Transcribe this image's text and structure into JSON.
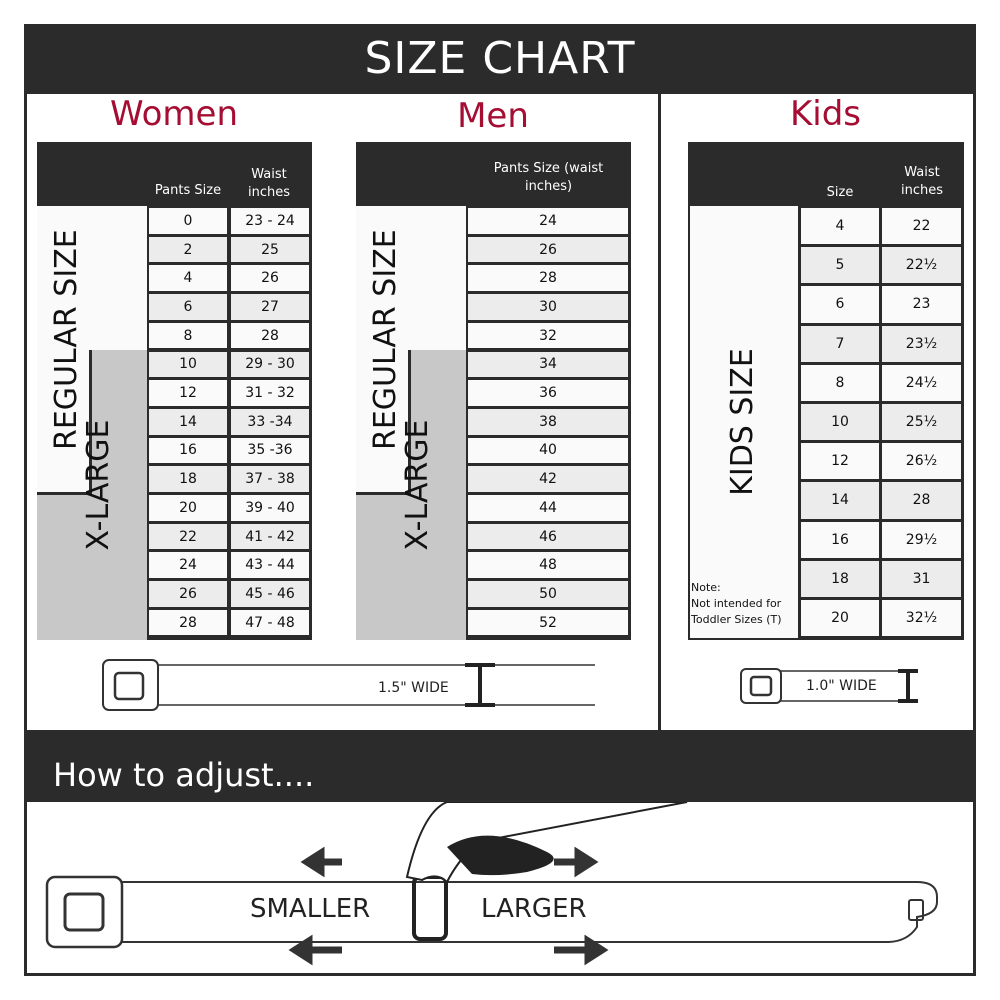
{
  "title": "SIZE CHART",
  "colors": {
    "accent": "#a50d32",
    "dark": "#2b2b2b",
    "xlarge": "#c8c8c8"
  },
  "women": {
    "title": "Women",
    "col1": "Pants Size",
    "col2": "Waist inches",
    "regular_label": "REGULAR SIZE",
    "xlarge_label": "X-LARGE",
    "rows": [
      [
        "0",
        "23 - 24"
      ],
      [
        "2",
        "25"
      ],
      [
        "4",
        "26"
      ],
      [
        "6",
        "27"
      ],
      [
        "8",
        "28"
      ],
      [
        "10",
        "29 - 30"
      ],
      [
        "12",
        "31 - 32"
      ],
      [
        "14",
        "33 -34"
      ],
      [
        "16",
        "35 -36"
      ],
      [
        "18",
        "37 - 38"
      ],
      [
        "20",
        "39 - 40"
      ],
      [
        "22",
        "41 - 42"
      ],
      [
        "24",
        "43 - 44"
      ],
      [
        "26",
        "45 - 46"
      ],
      [
        "28",
        "47 - 48"
      ]
    ],
    "width_label": "1.5\" WIDE"
  },
  "men": {
    "title": "Men",
    "col1": "Pants Size (waist inches)",
    "regular_label": "REGULAR SIZE",
    "xlarge_label": "X-LARGE",
    "rows": [
      "24",
      "26",
      "28",
      "30",
      "32",
      "34",
      "36",
      "38",
      "40",
      "42",
      "44",
      "46",
      "48",
      "50",
      "52"
    ]
  },
  "kids": {
    "title": "Kids",
    "col1": "Size",
    "col2": "Waist inches",
    "label": "KIDS SIZE",
    "note": "Note:\nNot intended for\nToddler Sizes (T)",
    "rows": [
      [
        "4",
        "22"
      ],
      [
        "5",
        "22½"
      ],
      [
        "6",
        "23"
      ],
      [
        "7",
        "23½"
      ],
      [
        "8",
        "24½"
      ],
      [
        "10",
        "25½"
      ],
      [
        "12",
        "26½"
      ],
      [
        "14",
        "28"
      ],
      [
        "16",
        "29½"
      ],
      [
        "18",
        "31"
      ],
      [
        "20",
        "32½"
      ]
    ],
    "width_label": "1.0\" WIDE"
  },
  "adjust": {
    "title": "How to adjust....",
    "smaller": "SMALLER",
    "larger": "LARGER"
  }
}
